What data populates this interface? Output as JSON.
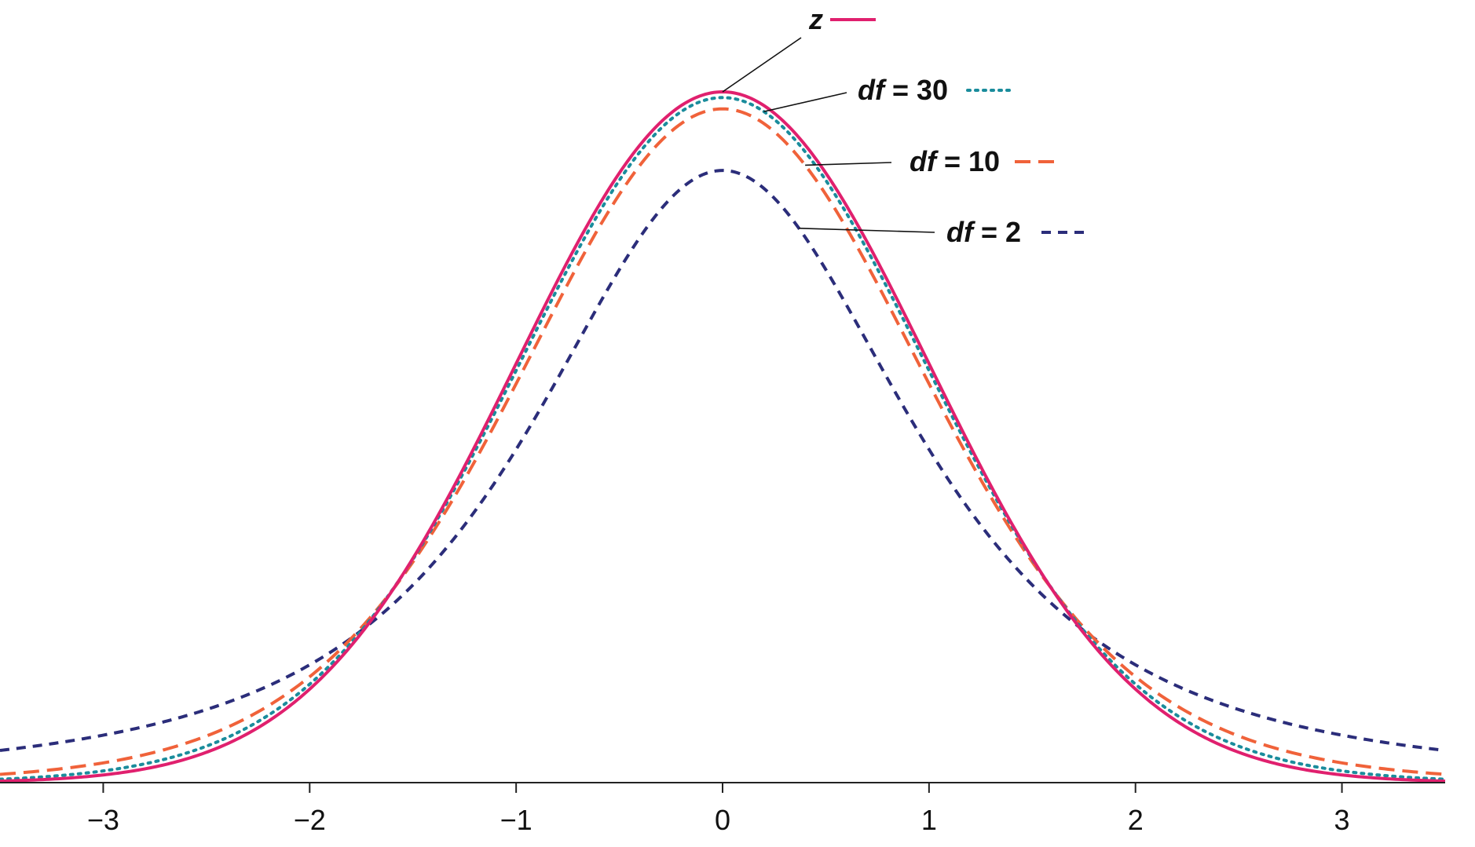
{
  "chart_data": {
    "type": "line",
    "title": "",
    "xlabel": "",
    "ylabel": "",
    "xlim": [
      -3.5,
      3.5
    ],
    "ylim": [
      0,
      0.4
    ],
    "xticks": [
      -3,
      -2,
      -1,
      0,
      1,
      2,
      3
    ],
    "xtick_labels": [
      "−3",
      "−2",
      "−1",
      "0",
      "1",
      "2",
      "3"
    ],
    "grid": false,
    "legend_placement": "top-center, labels with leader lines to curves",
    "series": [
      {
        "name": "z",
        "distribution": "standard normal",
        "color": "#e0206e",
        "dash": "solid",
        "x": [
          -3.5,
          -3,
          -2.5,
          -2,
          -1.5,
          -1,
          -0.5,
          0,
          0.5,
          1,
          1.5,
          2,
          2.5,
          3,
          3.5
        ],
        "y": [
          0.0009,
          0.0044,
          0.0175,
          0.054,
          0.1295,
          0.242,
          0.3521,
          0.3989,
          0.3521,
          0.242,
          0.1295,
          0.054,
          0.0175,
          0.0044,
          0.0009
        ]
      },
      {
        "name": "df = 30",
        "df": 30,
        "color": "#1a8c9c",
        "dash": "dotted",
        "x": [
          -3.5,
          -3,
          -2.5,
          -2,
          -1.5,
          -1,
          -0.5,
          0,
          0.5,
          1,
          1.5,
          2,
          2.5,
          3,
          3.5
        ],
        "y": [
          0.0019,
          0.0062,
          0.0199,
          0.0571,
          0.1301,
          0.2389,
          0.3458,
          0.3956,
          0.3458,
          0.2389,
          0.1301,
          0.0571,
          0.0199,
          0.0062,
          0.0019
        ]
      },
      {
        "name": "df = 10",
        "df": 10,
        "color": "#f0623a",
        "dash": "dashed",
        "x": [
          -3.5,
          -3,
          -2.5,
          -2,
          -1.5,
          -1,
          -0.5,
          0,
          0.5,
          1,
          1.5,
          2,
          2.5,
          3,
          3.5
        ],
        "y": [
          0.0042,
          0.0114,
          0.0269,
          0.0611,
          0.1274,
          0.2304,
          0.3397,
          0.3891,
          0.3397,
          0.2304,
          0.1274,
          0.0611,
          0.0269,
          0.0114,
          0.0042
        ]
      },
      {
        "name": "df = 2",
        "df": 2,
        "color": "#2b2d7a",
        "dash": "short-dashed",
        "x": [
          -3.5,
          -3,
          -2.5,
          -2,
          -1.5,
          -1,
          -0.5,
          0,
          0.5,
          1,
          1.5,
          2,
          2.5,
          3,
          3.5
        ],
        "y": [
          0.0173,
          0.0274,
          0.0422,
          0.068,
          0.1136,
          0.1925,
          0.2963,
          0.3536,
          0.2963,
          0.1925,
          0.1136,
          0.068,
          0.0422,
          0.0274,
          0.0173
        ]
      }
    ]
  },
  "legend": [
    {
      "id": "z",
      "italic": "z",
      "rest": "",
      "color": "#e0206e",
      "dash": "solid",
      "anchor_x": 0.0,
      "anchor_series": "z"
    },
    {
      "id": "df30",
      "italic": "df",
      "rest": " = 30",
      "color": "#1a8c9c",
      "dash": "dotted",
      "anchor_x": 0.2,
      "anchor_series": "df = 30"
    },
    {
      "id": "df10",
      "italic": "df",
      "rest": " = 10",
      "color": "#f0623a",
      "dash": "dashed",
      "anchor_x": 0.4,
      "anchor_series": "df = 10"
    },
    {
      "id": "df2",
      "italic": "df",
      "rest": " = 2",
      "color": "#2b2d7a",
      "dash": "short-dashed",
      "anchor_x": 0.37,
      "anchor_series": "df = 2"
    }
  ]
}
